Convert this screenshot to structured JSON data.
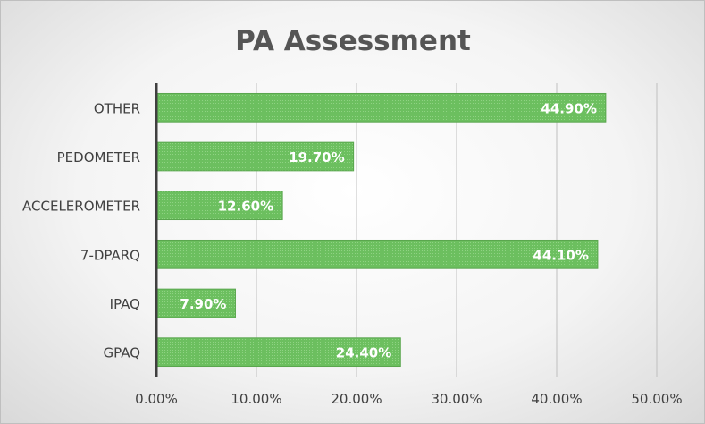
{
  "chart_data": {
    "type": "bar",
    "orientation": "horizontal",
    "title": "PA Assessment",
    "categories": [
      "OTHER",
      "PEDOMETER",
      "ACCELEROMETER",
      "7-DPARQ",
      "IPAQ",
      "GPAQ"
    ],
    "values": [
      44.9,
      19.7,
      12.6,
      44.1,
      7.9,
      24.4
    ],
    "data_labels": [
      "44.90%",
      "19.70%",
      "12.60%",
      "44.10%",
      "7.90%",
      "24.40%"
    ],
    "xlim": [
      0,
      50
    ],
    "xticks": [
      0,
      10,
      20,
      30,
      40,
      50
    ],
    "xtick_labels": [
      "0.00%",
      "10.00%",
      "20.00%",
      "30.00%",
      "40.00%",
      "50.00%"
    ],
    "grid": "vertical",
    "legend": "none",
    "bar_color": "#6cbf5f",
    "bar_border_color": "#5aa64e"
  }
}
